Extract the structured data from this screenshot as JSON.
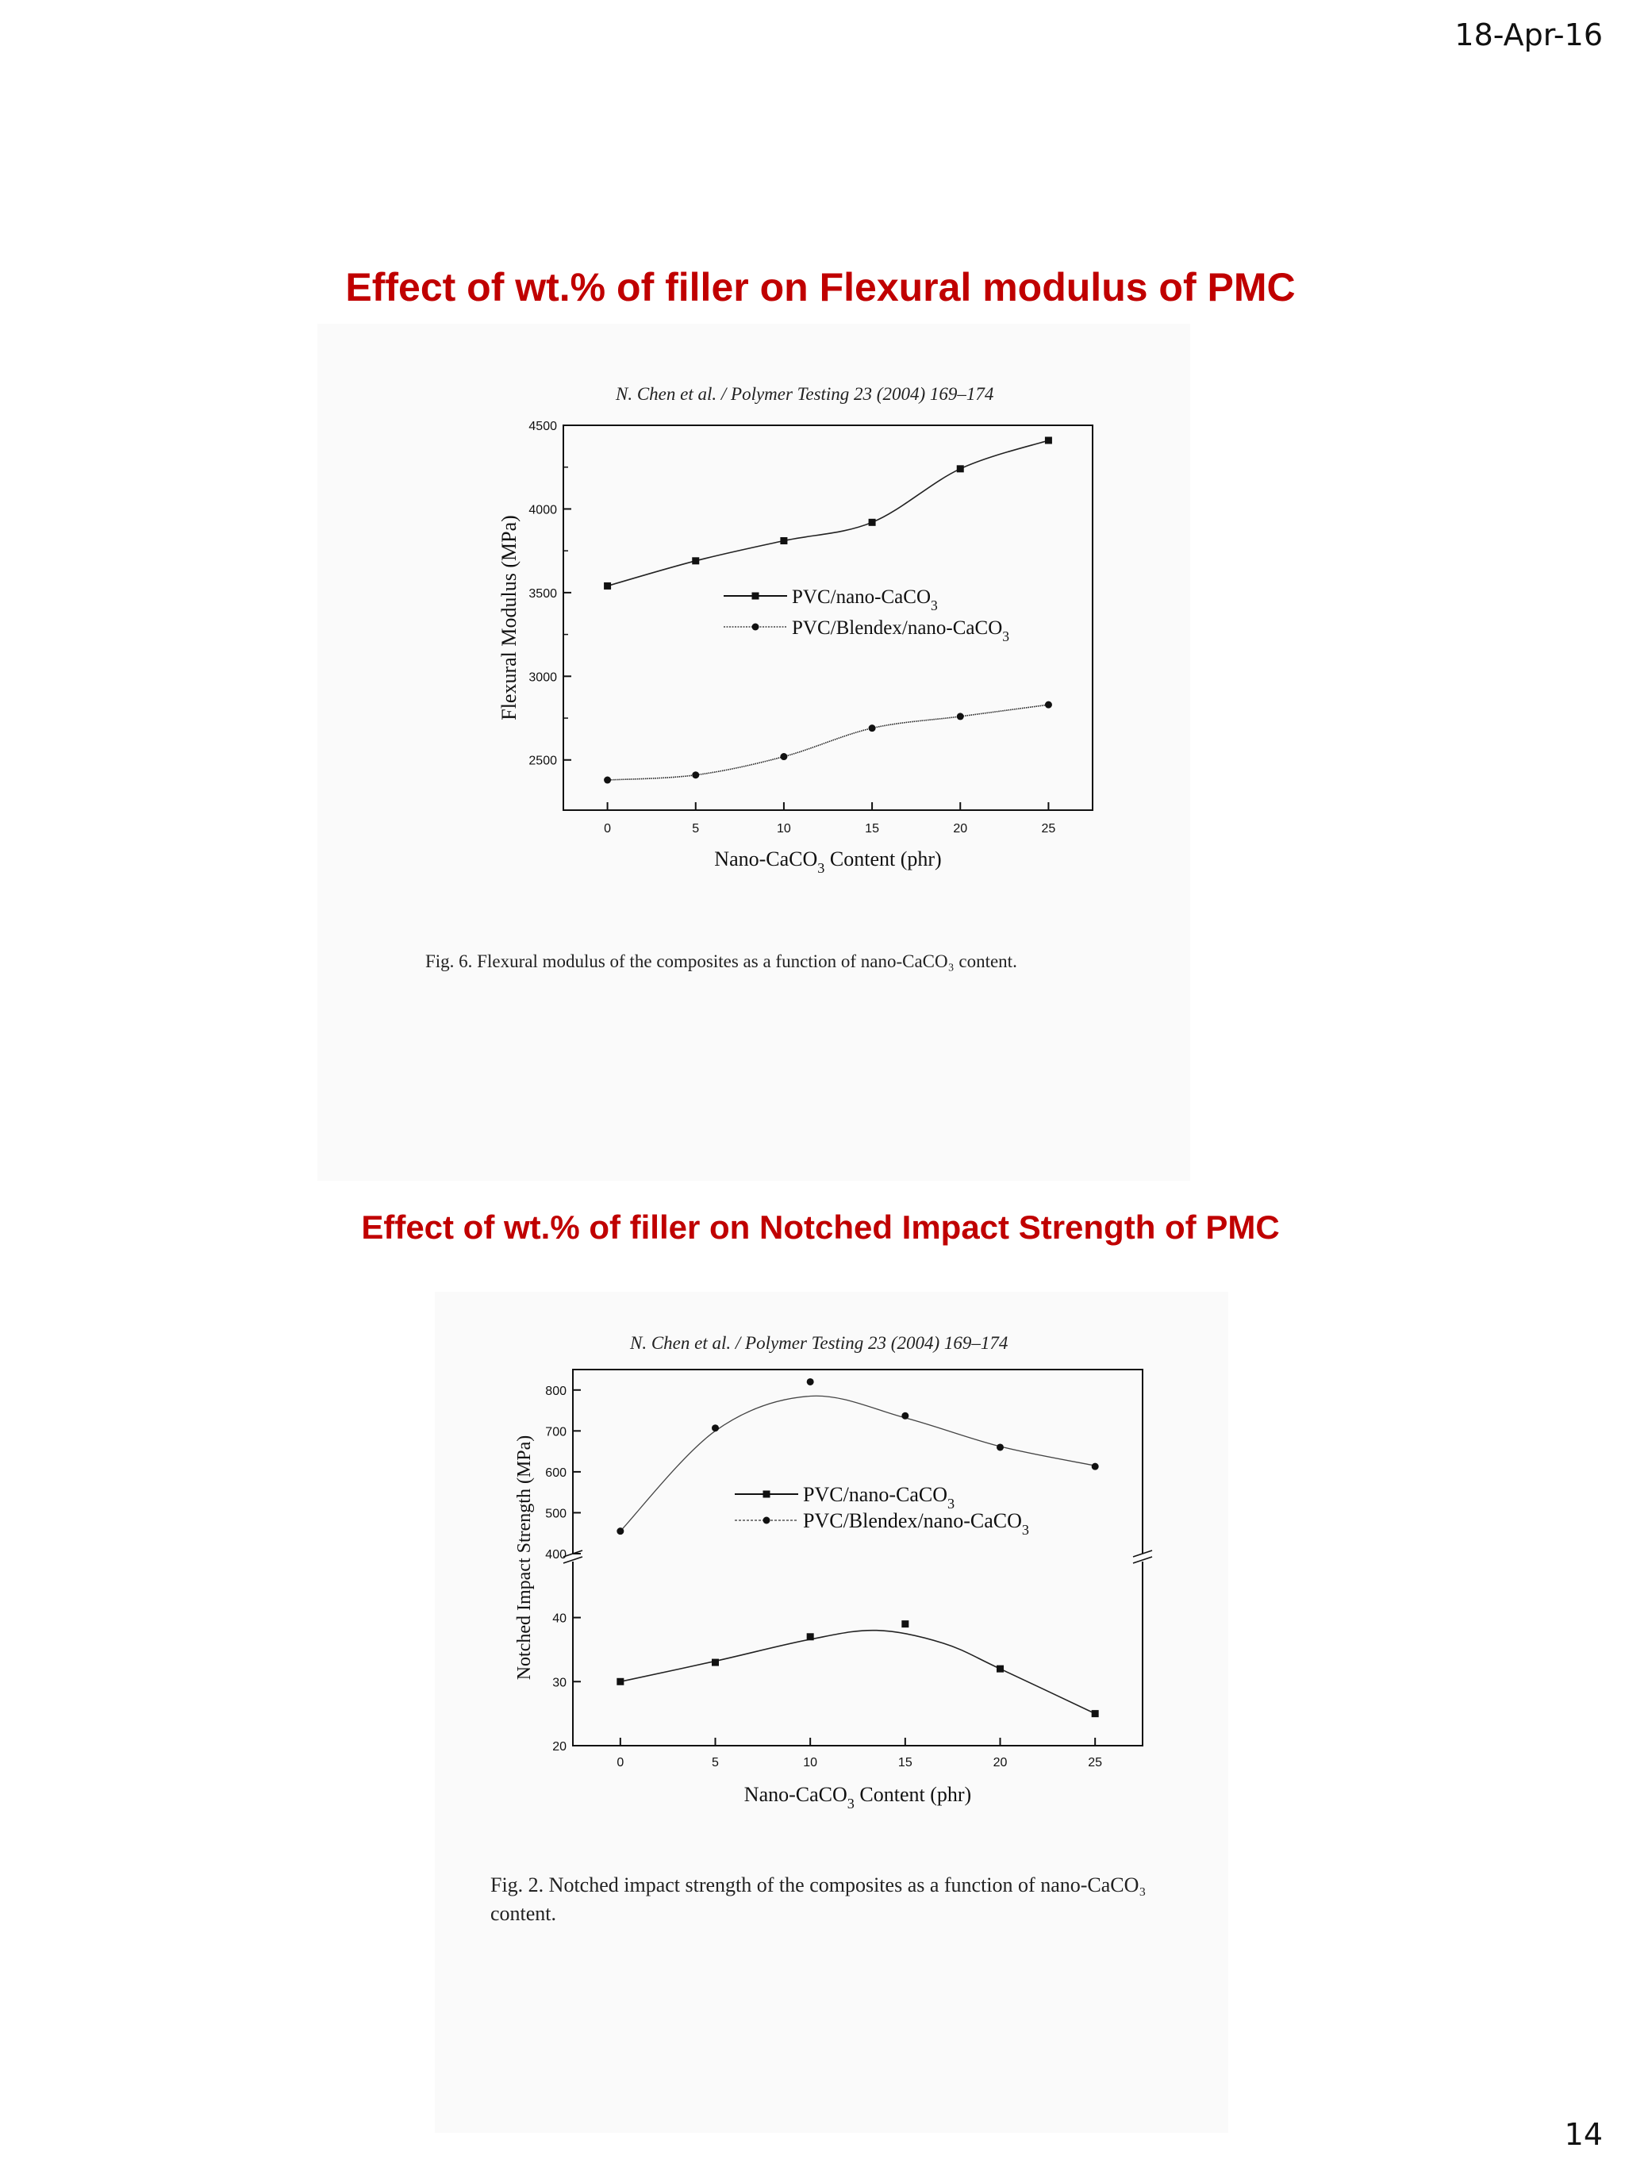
{
  "slide": {
    "date": "18-Apr-16",
    "page_number": "14",
    "heading1": "Effect of wt.% of filler on Flexural modulus of PMC",
    "heading2": "Effect of wt.% of filler on Notched Impact Strength of PMC",
    "heading_color": "#c00000"
  },
  "figures": [
    {
      "citation": "N. Chen et al. / Polymer Testing 23 (2004) 169–174",
      "caption": "Fig. 6.   Flexural modulus of the composites as a function of nano-CaCO₃ content."
    },
    {
      "citation": "N. Chen et al. / Polymer Testing 23 (2004) 169–174",
      "caption": "Fig. 2.   Notched impact strength of the composites as a function of nano-CaCO₃ content."
    }
  ],
  "chart_data": [
    {
      "type": "line",
      "xlabel": "Nano-CaCO3 Content (phr)",
      "ylabel": "Flexural Modulus (MPa)",
      "x": [
        0,
        5,
        10,
        15,
        20,
        25
      ],
      "xticks": [
        "0",
        "5",
        "10",
        "15",
        "20",
        "25"
      ],
      "yticks": [
        "2500",
        "3000",
        "3500",
        "4000",
        "4500"
      ],
      "xlim": [
        -2.5,
        27.5
      ],
      "ylim": [
        2200,
        4500
      ],
      "legend_position": "center-right",
      "grid": false,
      "series": [
        {
          "name": "PVC/nano-CaCO3",
          "marker": "square",
          "values": [
            3540,
            3690,
            3810,
            3920,
            4240,
            4410
          ]
        },
        {
          "name": "PVC/Blendex/nano-CaCO3",
          "marker": "circle",
          "values": [
            2380,
            2410,
            2520,
            2690,
            2760,
            2830
          ]
        }
      ]
    },
    {
      "type": "line",
      "xlabel": "Nano-CaCO3 Content (phr)",
      "ylabel": "Notched Impact Strength (MPa)",
      "x": [
        0,
        5,
        10,
        15,
        20,
        25
      ],
      "xticks": [
        "0",
        "5",
        "10",
        "15",
        "20",
        "25"
      ],
      "yticks_upper": [
        "400",
        "500",
        "600",
        "700",
        "800"
      ],
      "yticks_lower": [
        "20",
        "30",
        "40"
      ],
      "xlim": [
        -2.5,
        27.5
      ],
      "ylim_upper": [
        400,
        850
      ],
      "ylim_lower": [
        20,
        48
      ],
      "axis_break": true,
      "legend_position": "center-right",
      "grid": false,
      "series": [
        {
          "name": "PVC/nano-CaCO3",
          "marker": "square",
          "values": [
            30,
            33,
            37,
            39,
            32,
            25
          ]
        },
        {
          "name": "PVC/Blendex/nano-CaCO3",
          "marker": "circle",
          "values": [
            455,
            707,
            820,
            737,
            660,
            613
          ]
        }
      ]
    }
  ]
}
